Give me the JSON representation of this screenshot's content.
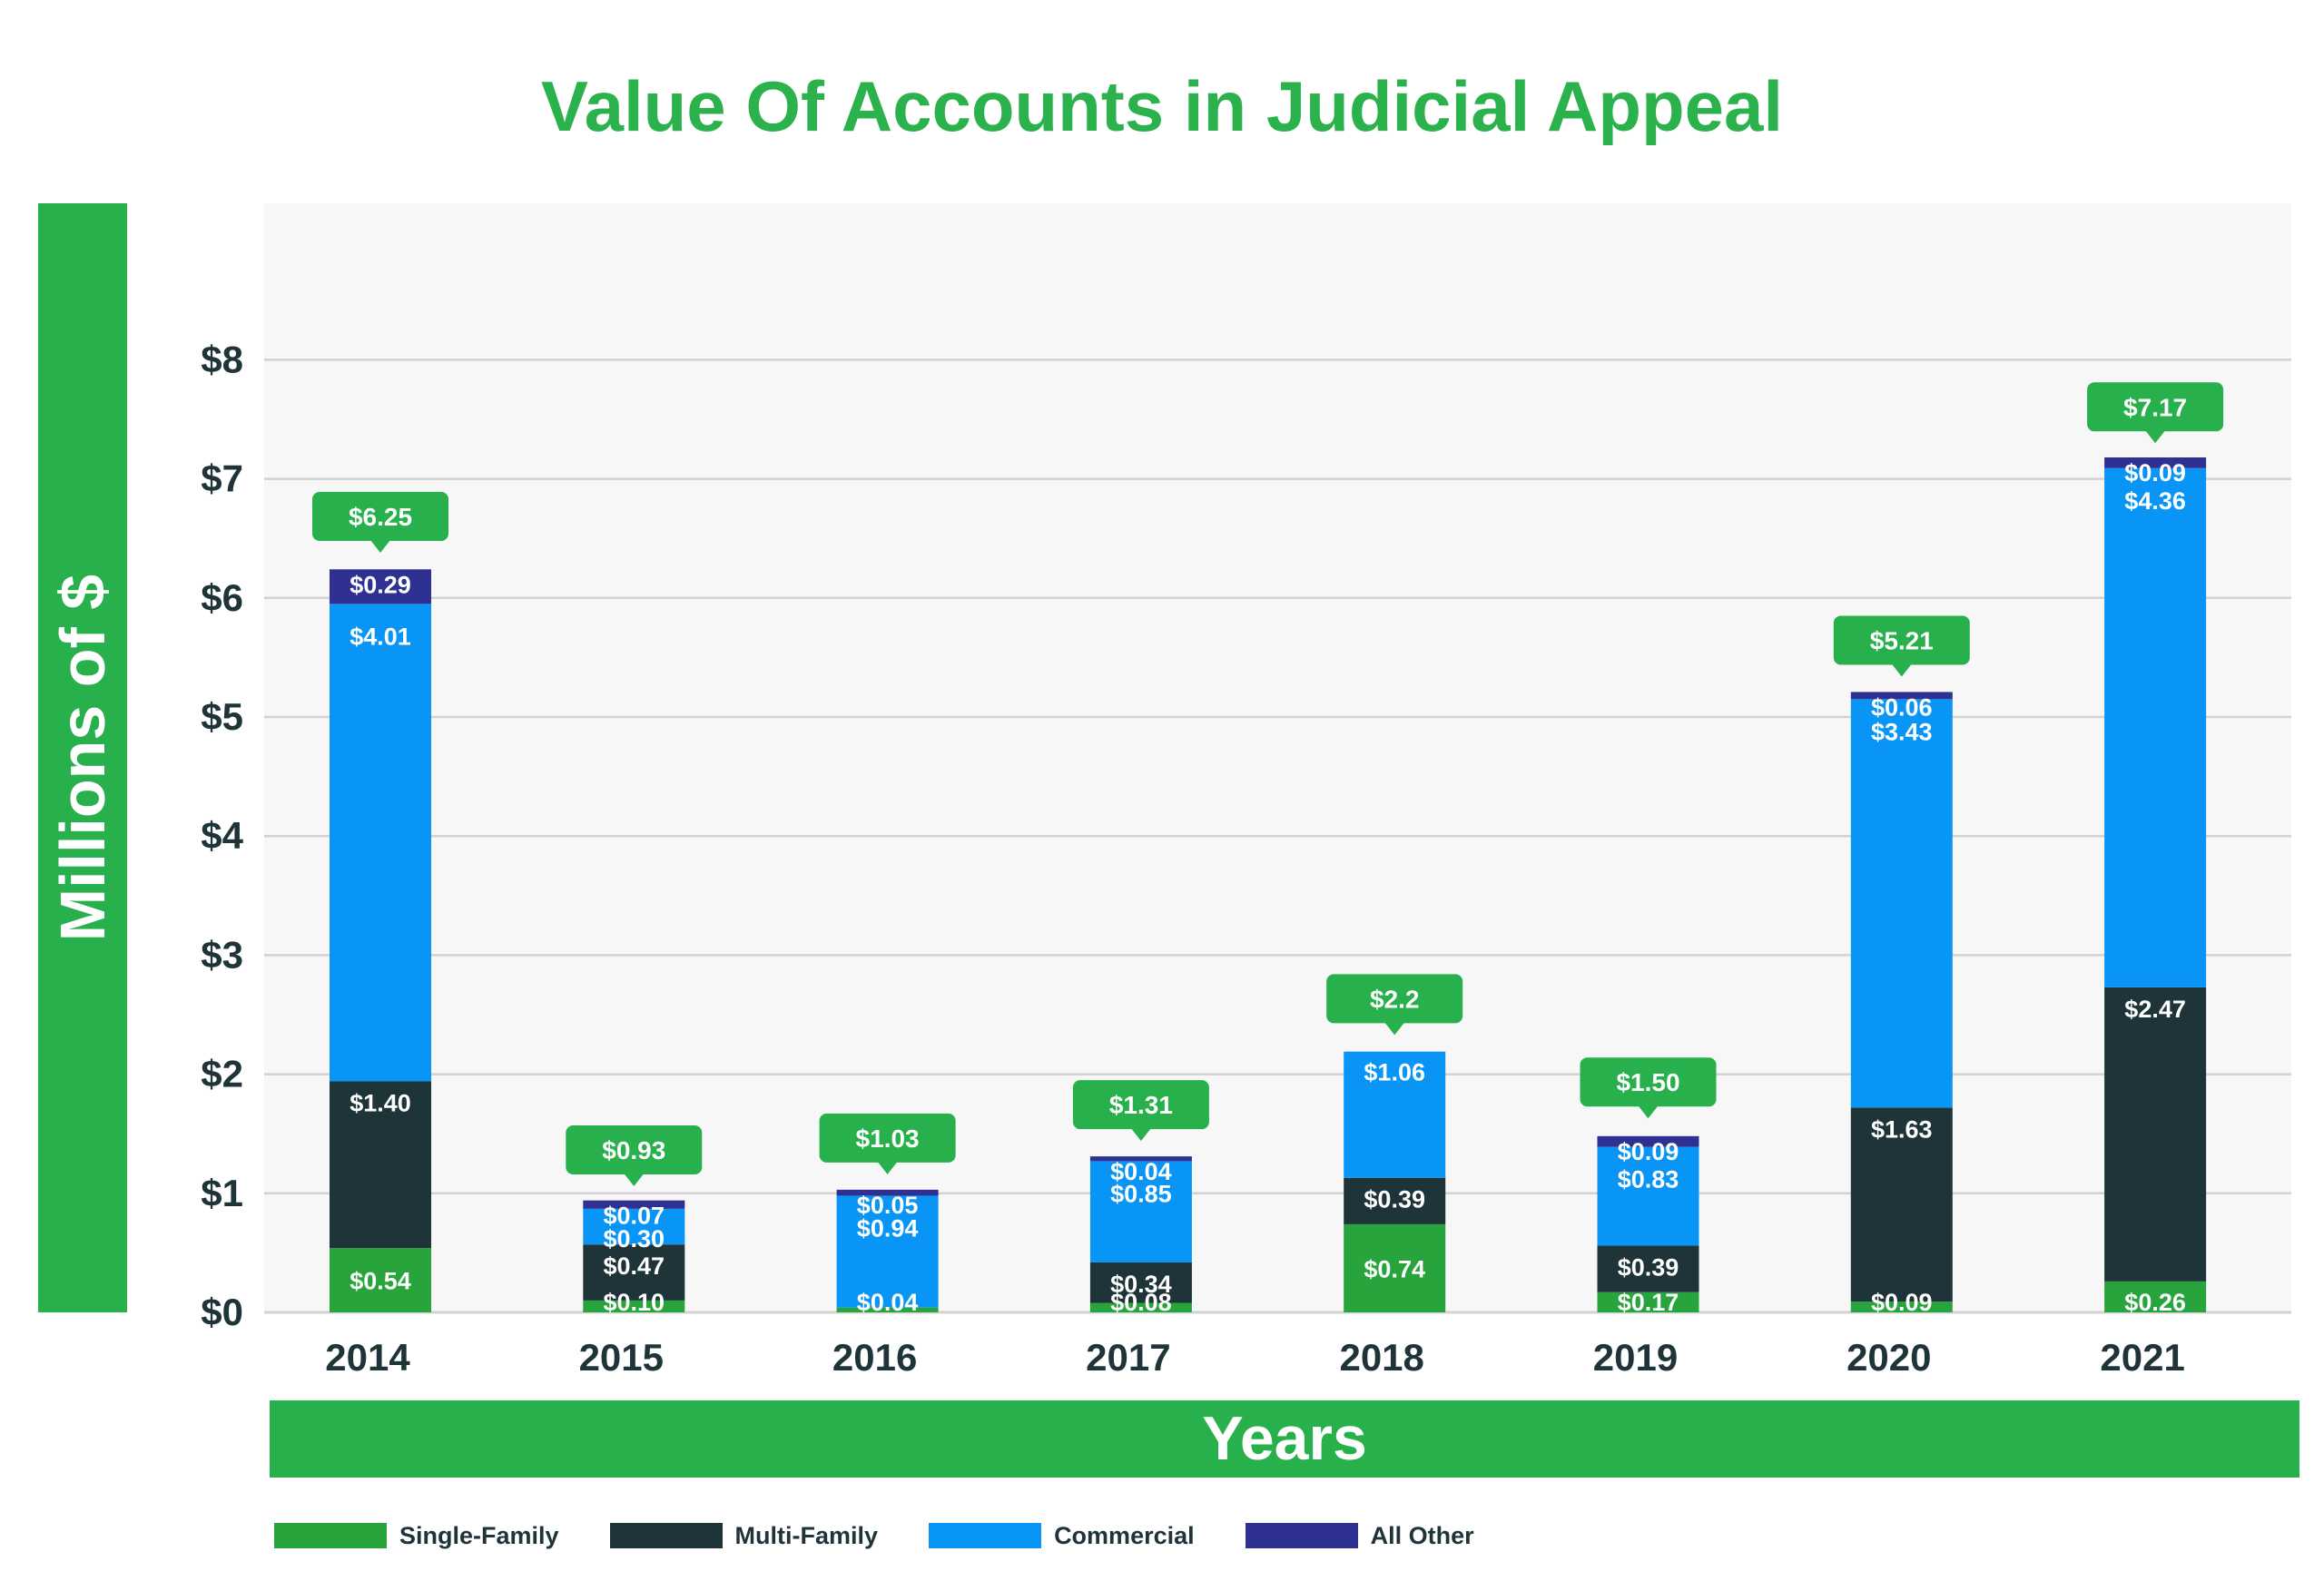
{
  "colors": {
    "title": "#2bb24c",
    "band": "#27b04b",
    "callout": "#27b04b",
    "text_dark": "#1e3438",
    "plot_bg": "#f7f7f7",
    "grid": "#d2d2d2"
  },
  "chart_data": {
    "type": "bar",
    "stacked": true,
    "title": "Value Of Accounts in Judicial Appeal",
    "xlabel": "Years",
    "ylabel": "Millions of $",
    "ylim": [
      0,
      9
    ],
    "grid": true,
    "legend_position": "bottom-left",
    "categories": [
      "2014",
      "2015",
      "2016",
      "2017",
      "2018",
      "2019",
      "2020",
      "2021"
    ],
    "y_ticks": [
      {
        "value": 0,
        "label": "$0"
      },
      {
        "value": 1,
        "label": "$1"
      },
      {
        "value": 2,
        "label": "$2"
      },
      {
        "value": 3,
        "label": "$3"
      },
      {
        "value": 4,
        "label": "$4"
      },
      {
        "value": 5,
        "label": "$5"
      },
      {
        "value": 6,
        "label": "$6"
      },
      {
        "value": 7,
        "label": "$7"
      },
      {
        "value": 8,
        "label": "$8"
      }
    ],
    "series": [
      {
        "name": "Single-Family",
        "color": "#27a43c",
        "values": [
          0.54,
          0.1,
          0.04,
          0.08,
          0.74,
          0.17,
          0.09,
          0.26
        ],
        "labels": [
          "$0.54",
          "$0.10",
          "$0.04",
          "$0.08",
          "$0.74",
          "$0.17",
          "$0.09",
          "$0.26"
        ]
      },
      {
        "name": "Multi-Family",
        "color": "#1e3438",
        "values": [
          1.4,
          0.47,
          0,
          0.34,
          0.39,
          0.39,
          1.63,
          2.47
        ],
        "labels": [
          "$1.40",
          "$0.47",
          "",
          "$0.34",
          "$0.39",
          "$0.39",
          "$1.63",
          "$2.47"
        ]
      },
      {
        "name": "Commercial",
        "color": "#0895f6",
        "values": [
          4.01,
          0.3,
          0.94,
          0.85,
          1.06,
          0.83,
          3.43,
          4.36
        ],
        "labels": [
          "$4.01",
          "$0.30",
          "$0.94",
          "$0.85",
          "$1.06",
          "$0.83",
          "$3.43",
          "$4.36"
        ]
      },
      {
        "name": "All Other",
        "color": "#2e3192",
        "values": [
          0.29,
          0.07,
          0.05,
          0.04,
          0,
          0.09,
          0.06,
          0.09
        ],
        "labels": [
          "$0.29",
          "$0.07",
          "$0.05",
          "$0.04",
          "",
          "$0.09",
          "$0.06",
          "$0.09"
        ]
      }
    ],
    "totals": [
      6.25,
      0.93,
      1.03,
      1.31,
      2.2,
      1.5,
      5.21,
      7.17
    ],
    "total_labels": [
      "$6.25",
      "$0.93",
      "$1.03",
      "$1.31",
      "$2.2",
      "$1.50",
      "$5.21",
      "$7.17"
    ]
  }
}
